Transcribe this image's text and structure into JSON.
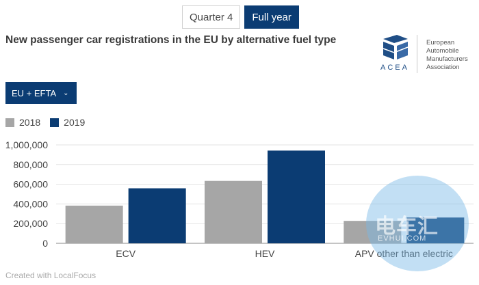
{
  "tabs": [
    {
      "label": "Quarter 4",
      "active": false
    },
    {
      "label": "Full year",
      "active": true
    }
  ],
  "page_title": "New passenger car registrations in the EU by alternative fuel type",
  "logo": {
    "acea": "ACEA",
    "lines": [
      "European",
      "Automobile",
      "Manufacturers",
      "Association"
    ]
  },
  "region_dropdown": {
    "label": "EU + EFTA",
    "icon": "chevron-down-icon"
  },
  "colors": {
    "accent": "#0b3c73",
    "series_2018": "#a6a6a6",
    "series_2019": "#0b3c73"
  },
  "chart_data": {
    "type": "bar",
    "categories": [
      "ECV",
      "HEV",
      "APV other than electric"
    ],
    "series": [
      {
        "name": "2018",
        "color": "#a6a6a6",
        "values": [
          383000,
          634000,
          228000
        ]
      },
      {
        "name": "2019",
        "color": "#0b3c73",
        "values": [
          559000,
          942000,
          262000
        ]
      }
    ],
    "yticks": [
      0,
      200000,
      400000,
      600000,
      800000,
      1000000
    ],
    "ytick_labels": [
      "0",
      "200,000",
      "400,000",
      "600,000",
      "800,000",
      "1,000,000"
    ],
    "ylim": [
      0,
      1000000
    ],
    "grid": true,
    "legend_position": "top-left"
  },
  "credit": "Created with LocalFocus",
  "watermark": {
    "text": "电车汇",
    "sub": "EVHUI.COM"
  }
}
